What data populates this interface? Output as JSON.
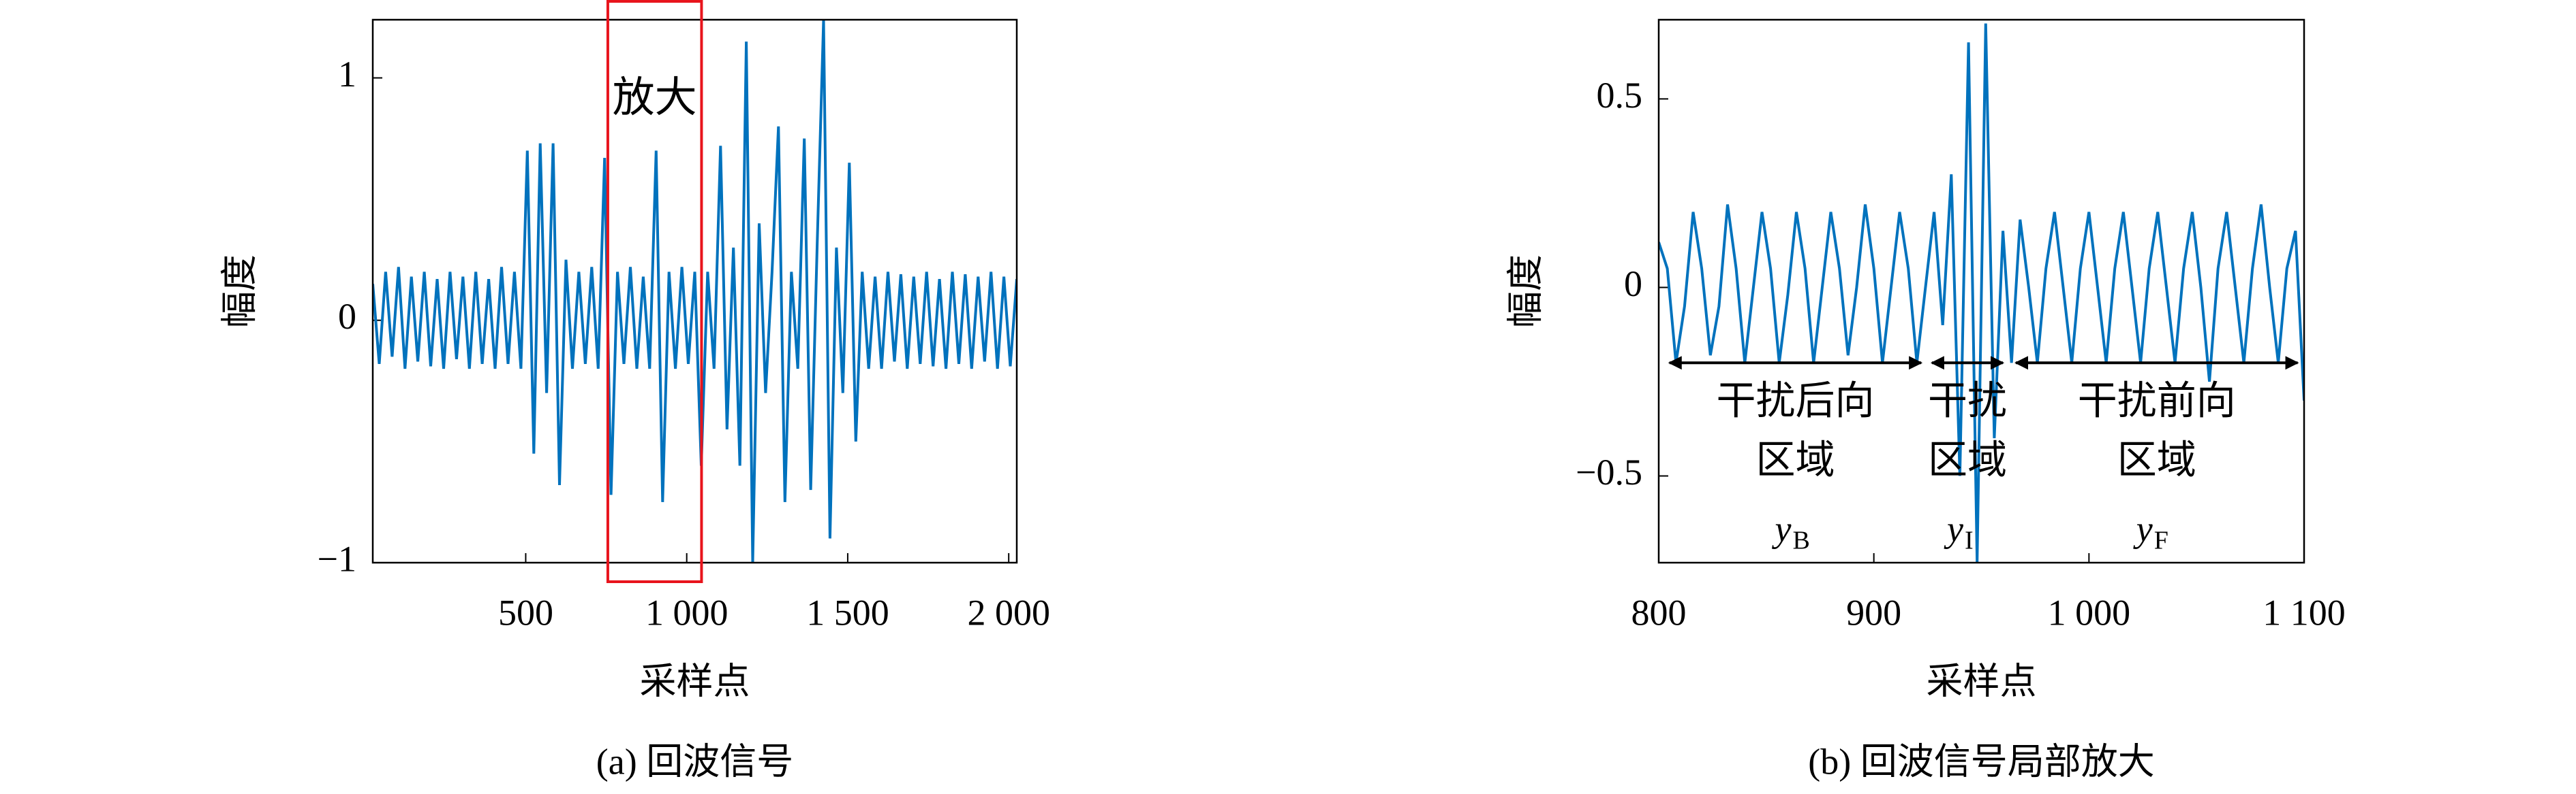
{
  "chart_data": [
    {
      "type": "line",
      "caption": "(a) 回波信号",
      "xlabel": "采样点",
      "ylabel": "幅度",
      "xlim": [
        25,
        2025
      ],
      "ylim": [
        -1,
        1.24
      ],
      "xticks": [
        500,
        {
          "value": 1000,
          "label": "1 000"
        },
        {
          "value": 1500,
          "label": "1 500"
        },
        {
          "value": 2000,
          "label": "2 000"
        }
      ],
      "yticks": [
        {
          "value": -1,
          "label": "−1"
        },
        0,
        1
      ],
      "x": [
        25,
        45,
        65,
        85,
        105,
        125,
        145,
        165,
        185,
        205,
        225,
        245,
        265,
        285,
        305,
        325,
        345,
        365,
        385,
        405,
        425,
        445,
        465,
        485,
        505,
        525,
        545,
        565,
        585,
        605,
        625,
        645,
        665,
        685,
        705,
        725,
        745,
        765,
        785,
        805,
        825,
        845,
        865,
        885,
        905,
        925,
        945,
        965,
        985,
        1005,
        1025,
        1045,
        1065,
        1085,
        1105,
        1125,
        1145,
        1165,
        1185,
        1205,
        1225,
        1245,
        1265,
        1285,
        1305,
        1325,
        1345,
        1365,
        1385,
        1405,
        1425,
        1445,
        1465,
        1485,
        1505,
        1525,
        1545,
        1565,
        1585,
        1605,
        1625,
        1645,
        1665,
        1685,
        1705,
        1725,
        1745,
        1765,
        1785,
        1805,
        1825,
        1845,
        1865,
        1885,
        1905,
        1925,
        1945,
        1965,
        1985,
        2005,
        2025
      ],
      "series": [
        {
          "color": "#0072bd",
          "values": [
            0.15,
            -0.18,
            0.2,
            -0.15,
            0.22,
            -0.2,
            0.18,
            -0.17,
            0.2,
            -0.19,
            0.17,
            -0.2,
            0.2,
            -0.16,
            0.18,
            -0.2,
            0.2,
            -0.18,
            0.17,
            -0.2,
            0.22,
            -0.18,
            0.2,
            -0.2,
            0.7,
            -0.55,
            0.73,
            -0.3,
            0.73,
            -0.68,
            0.25,
            -0.2,
            0.2,
            -0.18,
            0.22,
            -0.2,
            0.67,
            -0.72,
            0.2,
            -0.18,
            0.22,
            -0.2,
            0.18,
            -0.2,
            0.7,
            -0.75,
            0.2,
            -0.2,
            0.22,
            -0.18,
            0.2,
            -0.6,
            0.2,
            -0.2,
            0.72,
            -0.45,
            0.3,
            -0.6,
            1.15,
            -1.0,
            0.4,
            -0.3,
            0.2,
            0.8,
            -0.75,
            0.2,
            -0.2,
            0.75,
            -0.7,
            0.3,
            1.24,
            -0.9,
            0.3,
            -0.3,
            0.65,
            -0.5,
            0.2,
            -0.2,
            0.18,
            -0.2,
            0.2,
            -0.17,
            0.19,
            -0.2,
            0.18,
            -0.18,
            0.2,
            -0.19,
            0.17,
            -0.2,
            0.2,
            -0.18,
            0.19,
            -0.2,
            0.18,
            -0.17,
            0.2,
            -0.2,
            0.18,
            -0.19,
            0.17
          ]
        }
      ],
      "zoom_box": {
        "x": [
          755,
          1046
        ],
        "label": "放大",
        "color": "#e8141c"
      }
    },
    {
      "type": "line",
      "caption": "(b) 回波信号局部放大",
      "xlabel": "采样点",
      "ylabel": "幅度",
      "xlim": [
        800,
        1100
      ],
      "ylim": [
        -0.73,
        0.71
      ],
      "xticks": [
        800,
        900,
        {
          "value": 1000,
          "label": "1 000"
        },
        {
          "value": 1100,
          "label": "1 100"
        }
      ],
      "yticks": [
        {
          "value": -0.5,
          "label": "−0.5"
        },
        0,
        0.5
      ],
      "x": [
        800,
        804,
        808,
        812,
        816,
        820,
        824,
        828,
        832,
        836,
        840,
        844,
        848,
        852,
        856,
        860,
        864,
        868,
        872,
        876,
        880,
        884,
        888,
        892,
        896,
        900,
        904,
        908,
        912,
        916,
        920,
        924,
        928,
        932,
        936,
        940,
        944,
        948,
        952,
        956,
        960,
        964,
        968,
        972,
        976,
        980,
        984,
        988,
        992,
        996,
        1000,
        1004,
        1008,
        1012,
        1016,
        1020,
        1024,
        1028,
        1032,
        1036,
        1040,
        1044,
        1048,
        1052,
        1056,
        1060,
        1064,
        1068,
        1072,
        1076,
        1080,
        1084,
        1088,
        1092,
        1096,
        1100
      ],
      "series": [
        {
          "color": "#0072bd",
          "values": [
            0.12,
            0.05,
            -0.2,
            -0.05,
            0.2,
            0.05,
            -0.18,
            -0.05,
            0.22,
            0.05,
            -0.2,
            0.0,
            0.2,
            0.05,
            -0.2,
            -0.02,
            0.2,
            0.05,
            -0.2,
            0.0,
            0.2,
            0.05,
            -0.18,
            0.0,
            0.22,
            0.05,
            -0.2,
            0.0,
            0.2,
            0.05,
            -0.2,
            0.0,
            0.2,
            -0.1,
            0.3,
            -0.5,
            0.65,
            -0.73,
            0.7,
            -0.4,
            0.15,
            -0.2,
            0.18,
            0.0,
            -0.2,
            0.05,
            0.2,
            0.0,
            -0.2,
            0.05,
            0.2,
            0.0,
            -0.2,
            0.05,
            0.2,
            0.0,
            -0.2,
            0.05,
            0.2,
            0.0,
            -0.2,
            0.05,
            0.2,
            0.0,
            -0.25,
            0.05,
            0.2,
            0.0,
            -0.2,
            0.05,
            0.22,
            0.0,
            -0.2,
            0.05,
            0.15,
            -0.3
          ]
        }
      ],
      "annotation_color": "#e8141c",
      "region_y": -0.2,
      "regions": [
        {
          "x": [
            805,
            922
          ],
          "lines": [
            "干扰后向",
            "区域"
          ],
          "symbol": "y",
          "sub": "B"
        },
        {
          "x": [
            927,
            960
          ],
          "lines": [
            "干扰",
            "区域"
          ],
          "symbol": "y",
          "sub": "I"
        },
        {
          "x": [
            966,
            1097
          ],
          "lines": [
            "干扰前向",
            "区域"
          ],
          "symbol": "y",
          "sub": "F"
        }
      ]
    }
  ]
}
